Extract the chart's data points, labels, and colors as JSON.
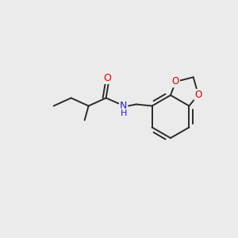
{
  "background_color": "#ebebeb",
  "bond_color": "#2b2b2b",
  "atom_colors": {
    "O": "#e00000",
    "N": "#2020cc",
    "C": "#2b2b2b"
  },
  "figsize": [
    3.0,
    3.0
  ],
  "dpi": 100,
  "lw": 1.4
}
